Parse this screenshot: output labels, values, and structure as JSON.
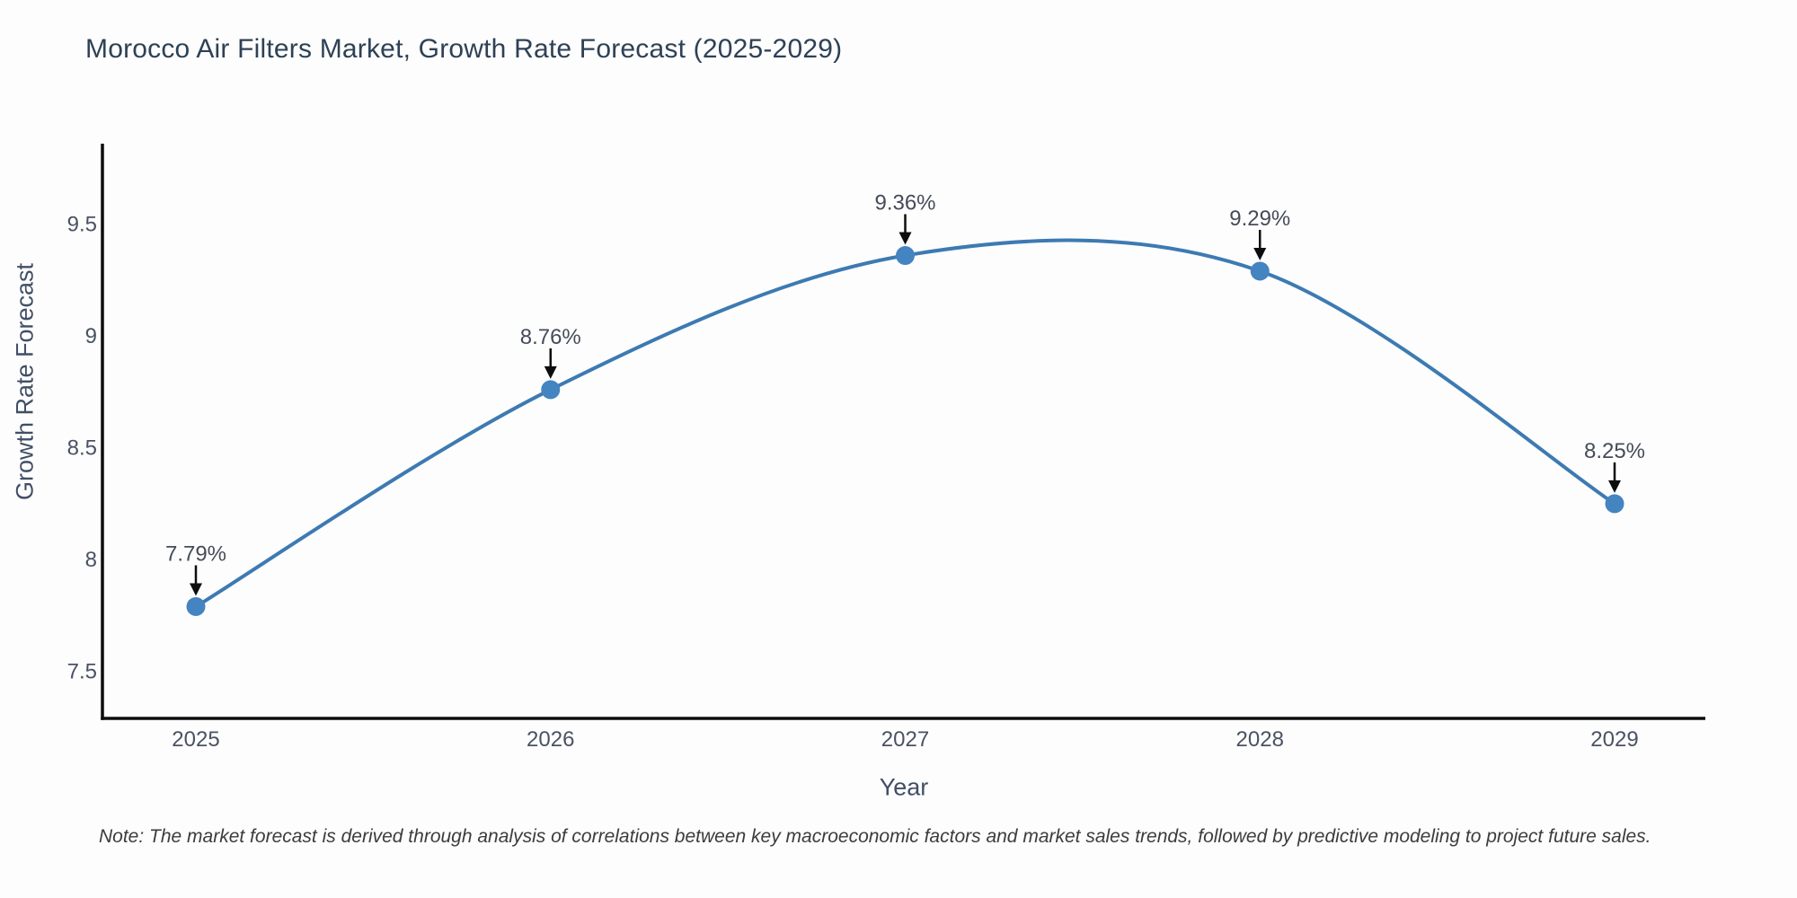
{
  "title": "Morocco Air Filters Market, Growth Rate Forecast (2025-2029)",
  "note": "Note: The market forecast is derived through analysis of correlations between key macroeconomic factors and market sales trends, followed by predictive modeling to project future sales.",
  "chart_data": {
    "type": "line",
    "title": "Morocco Air Filters Market, Growth Rate Forecast (2025-2029)",
    "xlabel": "Year",
    "ylabel": "Growth Rate Forecast",
    "categories": [
      "2025",
      "2026",
      "2027",
      "2028",
      "2029"
    ],
    "values": [
      7.79,
      8.76,
      9.36,
      9.29,
      8.25
    ],
    "point_labels": [
      "7.79%",
      "8.76%",
      "9.36%",
      "9.29%",
      "8.25%"
    ],
    "ytick_values": [
      7.5,
      8.0,
      8.5,
      9.0,
      9.5
    ],
    "ytick_labels": [
      "7.5",
      "8",
      "8.5",
      "9",
      "9.5"
    ],
    "ylim": [
      7.29,
      9.86
    ],
    "grid": false,
    "legend": false,
    "smooth": true,
    "line_color": "#3d7ab2",
    "marker_color": "#4484c1",
    "arrow_color": "#0d0d0d",
    "spine_color": "#0d0d0d",
    "tick_color": "#4a5263",
    "label_color": "#454c59"
  }
}
